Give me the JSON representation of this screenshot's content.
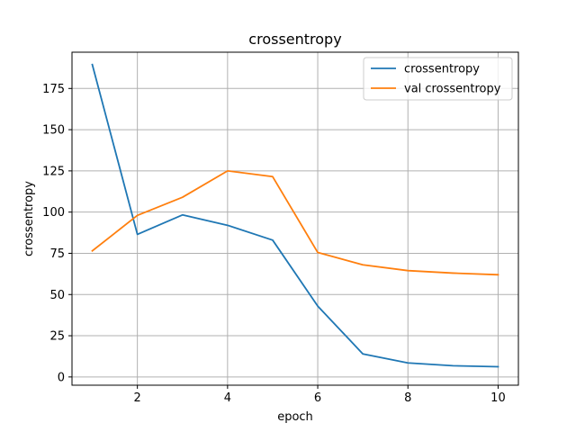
{
  "chart_data": {
    "type": "line",
    "title": "crossentropy",
    "xlabel": "epoch",
    "ylabel": "crossentropy",
    "x": [
      1,
      2,
      3,
      4,
      5,
      6,
      7,
      8,
      9,
      10
    ],
    "xlim": [
      0.55,
      10.45
    ],
    "ylim": [
      -5,
      197
    ],
    "xticks": [
      2,
      4,
      6,
      8,
      10
    ],
    "yticks": [
      0,
      25,
      50,
      75,
      100,
      125,
      150,
      175
    ],
    "grid": true,
    "legend_position": "top-right",
    "series": [
      {
        "name": "crossentropy",
        "color": "#1f77b4",
        "values": [
          189.5,
          86.5,
          98.3,
          92.0,
          83.0,
          43.0,
          14.0,
          8.5,
          6.8,
          6.2
        ]
      },
      {
        "name": "val crossentropy",
        "color": "#ff7f0e",
        "values": [
          76.5,
          98.0,
          109.0,
          125.0,
          121.5,
          75.5,
          68.0,
          64.5,
          63.0,
          62.0
        ]
      }
    ]
  }
}
